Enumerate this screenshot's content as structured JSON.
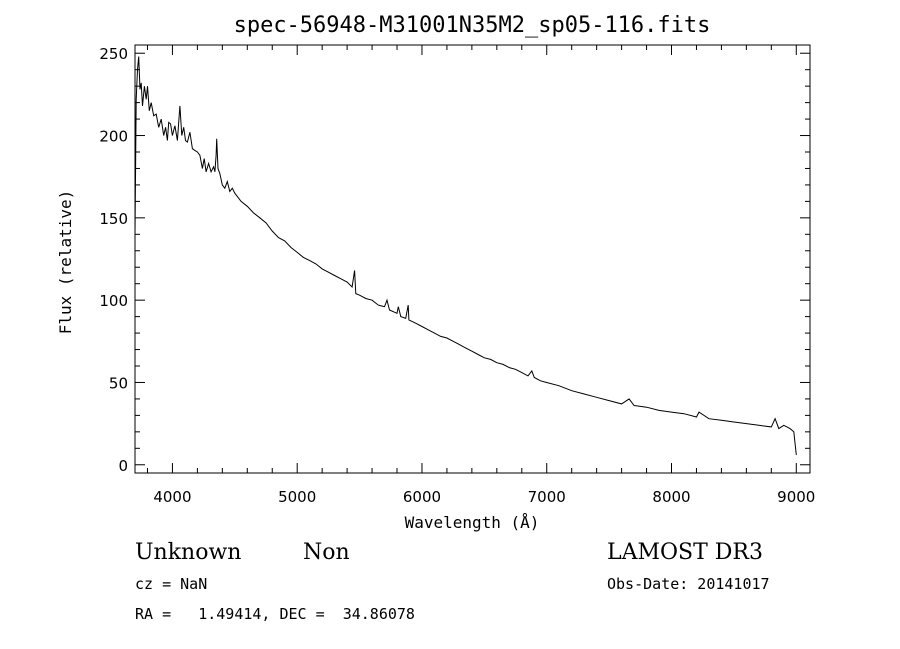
{
  "chart_data": {
    "type": "line",
    "title": "spec-56948-M31001N35M2_sp05-116.fits",
    "xlabel": "Wavelength (Å)",
    "ylabel": "Flux (relative)",
    "xlim": [
      3700,
      9110
    ],
    "ylim": [
      -5,
      255
    ],
    "xticks": [
      4000,
      5000,
      6000,
      7000,
      8000,
      9000
    ],
    "yticks": [
      0,
      50,
      100,
      150,
      200,
      250
    ],
    "series": [
      {
        "values": [
          [
            3700,
            140
          ],
          [
            3710,
            222
          ],
          [
            3720,
            240
          ],
          [
            3730,
            248
          ],
          [
            3740,
            228
          ],
          [
            3750,
            232
          ],
          [
            3760,
            218
          ],
          [
            3775,
            230
          ],
          [
            3790,
            222
          ],
          [
            3800,
            230
          ],
          [
            3815,
            215
          ],
          [
            3830,
            220
          ],
          [
            3850,
            212
          ],
          [
            3870,
            213
          ],
          [
            3890,
            205
          ],
          [
            3910,
            210
          ],
          [
            3930,
            200
          ],
          [
            3945,
            205
          ],
          [
            3960,
            197
          ],
          [
            3970,
            208
          ],
          [
            3985,
            207
          ],
          [
            4000,
            200
          ],
          [
            4020,
            206
          ],
          [
            4040,
            197
          ],
          [
            4060,
            218
          ],
          [
            4075,
            200
          ],
          [
            4090,
            205
          ],
          [
            4105,
            197
          ],
          [
            4120,
            196
          ],
          [
            4140,
            202
          ],
          [
            4160,
            192
          ],
          [
            4180,
            191
          ],
          [
            4200,
            190
          ],
          [
            4220,
            188
          ],
          [
            4240,
            180
          ],
          [
            4255,
            186
          ],
          [
            4270,
            178
          ],
          [
            4290,
            183
          ],
          [
            4310,
            178
          ],
          [
            4330,
            181
          ],
          [
            4340,
            178
          ],
          [
            4350,
            188
          ],
          [
            4355,
            198
          ],
          [
            4365,
            180
          ],
          [
            4380,
            177
          ],
          [
            4400,
            170
          ],
          [
            4420,
            168
          ],
          [
            4440,
            172
          ],
          [
            4460,
            166
          ],
          [
            4480,
            168
          ],
          [
            4500,
            165
          ],
          [
            4550,
            160
          ],
          [
            4600,
            157
          ],
          [
            4650,
            153
          ],
          [
            4700,
            150
          ],
          [
            4750,
            147
          ],
          [
            4800,
            142
          ],
          [
            4850,
            138
          ],
          [
            4900,
            136
          ],
          [
            4950,
            132
          ],
          [
            5000,
            129
          ],
          [
            5050,
            126
          ],
          [
            5100,
            124
          ],
          [
            5150,
            122
          ],
          [
            5200,
            119
          ],
          [
            5250,
            117
          ],
          [
            5300,
            115
          ],
          [
            5350,
            113
          ],
          [
            5400,
            111
          ],
          [
            5440,
            108
          ],
          [
            5460,
            118
          ],
          [
            5470,
            104
          ],
          [
            5500,
            103
          ],
          [
            5550,
            101
          ],
          [
            5600,
            100
          ],
          [
            5650,
            97
          ],
          [
            5700,
            96
          ],
          [
            5720,
            100
          ],
          [
            5740,
            94
          ],
          [
            5800,
            92
          ],
          [
            5810,
            96
          ],
          [
            5830,
            90
          ],
          [
            5870,
            89
          ],
          [
            5890,
            97
          ],
          [
            5895,
            88
          ],
          [
            5950,
            86
          ],
          [
            6000,
            84
          ],
          [
            6050,
            82
          ],
          [
            6100,
            80
          ],
          [
            6150,
            78
          ],
          [
            6200,
            77
          ],
          [
            6250,
            75
          ],
          [
            6300,
            73
          ],
          [
            6350,
            71
          ],
          [
            6400,
            69
          ],
          [
            6450,
            67
          ],
          [
            6500,
            65
          ],
          [
            6550,
            64
          ],
          [
            6600,
            62
          ],
          [
            6650,
            61
          ],
          [
            6700,
            59
          ],
          [
            6750,
            58
          ],
          [
            6800,
            56
          ],
          [
            6850,
            54
          ],
          [
            6880,
            57
          ],
          [
            6900,
            53
          ],
          [
            6950,
            51
          ],
          [
            7000,
            50
          ],
          [
            7100,
            48
          ],
          [
            7200,
            45
          ],
          [
            7300,
            43
          ],
          [
            7400,
            41
          ],
          [
            7500,
            39
          ],
          [
            7600,
            37
          ],
          [
            7660,
            40
          ],
          [
            7700,
            36
          ],
          [
            7800,
            35
          ],
          [
            7900,
            33
          ],
          [
            8000,
            32
          ],
          [
            8100,
            31
          ],
          [
            8200,
            29
          ],
          [
            8220,
            32
          ],
          [
            8300,
            28
          ],
          [
            8400,
            27
          ],
          [
            8500,
            26
          ],
          [
            8600,
            25
          ],
          [
            8700,
            24
          ],
          [
            8800,
            23
          ],
          [
            8830,
            28
          ],
          [
            8860,
            22
          ],
          [
            8900,
            24
          ],
          [
            8950,
            22
          ],
          [
            8980,
            20
          ],
          [
            9000,
            6
          ]
        ]
      }
    ]
  },
  "annotations": {
    "object_class": "Unknown",
    "object_subclass": "Non",
    "survey": "LAMOST DR3",
    "redshift": "cz = NaN",
    "obs_date": "Obs-Date: 20141017",
    "coords": "RA =   1.49414, DEC =  34.86078"
  }
}
